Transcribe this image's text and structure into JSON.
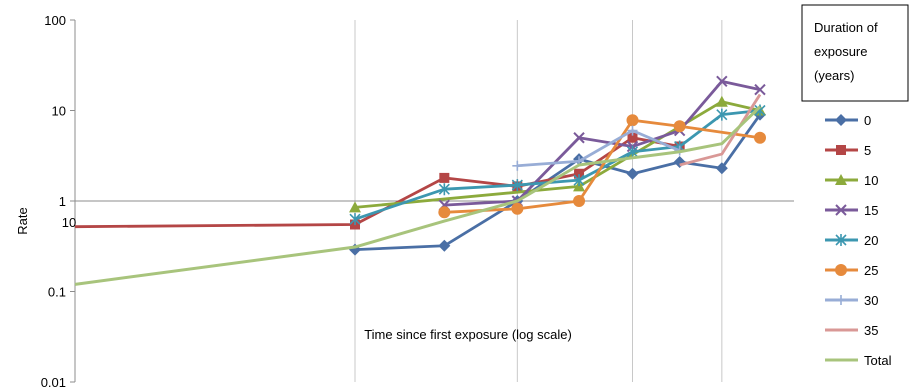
{
  "chart_data": {
    "type": "line",
    "title": "",
    "ylabel": "Rate",
    "xlabel": "Time since first exposure (log scale)",
    "x_scale": "log",
    "y_scale": "log",
    "xlim": [
      5,
      80
    ],
    "ylim": [
      0.01,
      100
    ],
    "y_ticks": [
      "100",
      "10",
      "1",
      "0.1",
      "0.01"
    ],
    "x_tick_labels": [
      "10"
    ],
    "legend": {
      "title_lines": [
        "Duration of",
        "exposure",
        "(years)"
      ],
      "position": "right"
    },
    "series": [
      {
        "name": "0",
        "color": "#4A6FA5",
        "marker": "diamond",
        "points": [
          [
            20,
            0.29
          ],
          [
            25,
            0.32
          ],
          [
            30,
            1.0
          ],
          [
            35,
            2.9
          ],
          [
            40,
            2.0
          ],
          [
            45,
            2.7
          ],
          [
            50,
            2.3
          ],
          [
            55,
            9.0
          ]
        ]
      },
      {
        "name": "5",
        "color": "#B44646",
        "marker": "square",
        "points": [
          [
            5,
            0.52
          ],
          [
            20,
            0.55
          ],
          [
            25,
            1.8
          ],
          [
            30,
            1.45
          ],
          [
            35,
            2.0
          ],
          [
            40,
            5.0
          ],
          [
            45,
            4.0
          ]
        ]
      },
      {
        "name": "10",
        "color": "#8CAA3C",
        "marker": "triangle",
        "points": [
          [
            20,
            0.85
          ],
          [
            35,
            1.45
          ],
          [
            50,
            12.5
          ],
          [
            55,
            10.0
          ]
        ]
      },
      {
        "name": "15",
        "color": "#7A5A9A",
        "marker": "x",
        "points": [
          [
            25,
            0.9
          ],
          [
            30,
            1.0
          ],
          [
            35,
            5.0
          ],
          [
            40,
            4.0
          ],
          [
            45,
            6.0
          ],
          [
            50,
            21.0
          ],
          [
            55,
            17.0
          ]
        ]
      },
      {
        "name": "20",
        "color": "#3C97B0",
        "marker": "star",
        "points": [
          [
            20,
            0.63
          ],
          [
            25,
            1.35
          ],
          [
            30,
            1.5
          ],
          [
            35,
            1.7
          ],
          [
            40,
            3.5
          ],
          [
            45,
            4.0
          ],
          [
            50,
            9.0
          ],
          [
            55,
            10.0
          ]
        ]
      },
      {
        "name": "25",
        "color": "#E68A3C",
        "marker": "circle",
        "points": [
          [
            25,
            0.75
          ],
          [
            30,
            0.82
          ],
          [
            35,
            1.0
          ],
          [
            40,
            7.8
          ],
          [
            45,
            6.7
          ],
          [
            55,
            5.0
          ]
        ]
      },
      {
        "name": "30",
        "color": "#98ADD6",
        "marker": "plus",
        "points": [
          [
            30,
            2.45
          ],
          [
            35,
            2.75
          ],
          [
            40,
            6.0
          ],
          [
            45,
            3.6
          ]
        ]
      },
      {
        "name": "35",
        "color": "#D99896",
        "marker": "none",
        "points": [
          [
            45,
            2.5
          ],
          [
            50,
            3.3
          ],
          [
            55,
            15.0
          ]
        ]
      },
      {
        "name": "Total",
        "color": "#A8C47C",
        "marker": "none",
        "points": [
          [
            5,
            0.12
          ],
          [
            20,
            0.31
          ],
          [
            25,
            0.6
          ],
          [
            30,
            1.0
          ],
          [
            35,
            2.5
          ],
          [
            40,
            3.0
          ],
          [
            45,
            3.5
          ],
          [
            50,
            4.3
          ],
          [
            55,
            11.0
          ]
        ]
      }
    ]
  }
}
